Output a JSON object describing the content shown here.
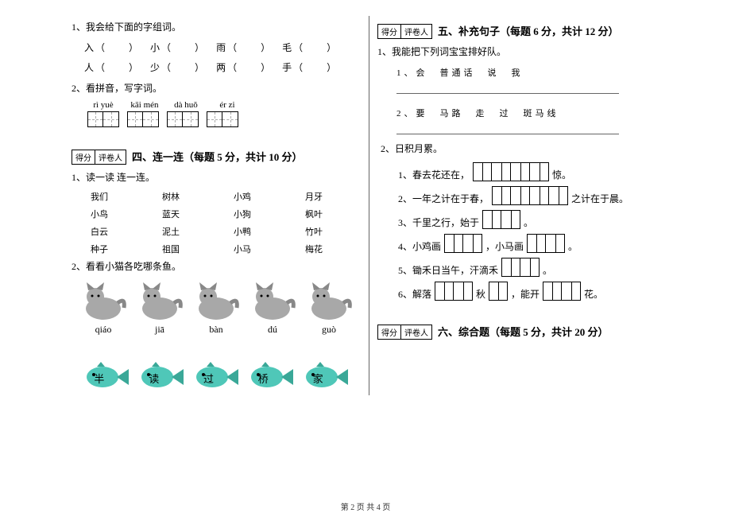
{
  "left": {
    "q1": {
      "title": "1、我会给下面的字组词。",
      "row1": [
        "入（　　）",
        "小（　　）",
        "雨（　　）",
        "毛（　　）"
      ],
      "row2": [
        "人（　　）",
        "少（　　）",
        "两（　　）",
        "手（　　）"
      ]
    },
    "q2": {
      "title": "2、看拼音，写字词。",
      "pinyin": [
        "rì yuè",
        "kāi mén",
        "dà huǒ",
        "ér zi"
      ]
    },
    "score": {
      "a": "得分",
      "b": "评卷人"
    },
    "section4": "四、连一连（每题 5 分，共计 10 分）",
    "match1_title": "1、读一读 连一连。",
    "match1": [
      [
        "我们",
        "树林",
        "小鸡",
        "月牙"
      ],
      [
        "小鸟",
        "蓝天",
        "小狗",
        "枫叶"
      ],
      [
        "白云",
        "泥土",
        "小鸭",
        "竹叶"
      ],
      [
        "种子",
        "祖国",
        "小马",
        "梅花"
      ]
    ],
    "match2_title": "2、看看小猫各吃哪条鱼。",
    "cat_pinyin": [
      "qiáo",
      "jiā",
      "bàn",
      "dú",
      "guò"
    ],
    "fish_labels": [
      "半",
      "读",
      "过",
      "桥",
      "家"
    ]
  },
  "right": {
    "score": {
      "a": "得分",
      "b": "评卷人"
    },
    "section5": "五、补充句子（每题 6 分，共计 12 分）",
    "q1": {
      "title": "1、我能把下列词宝宝排好队。",
      "line1": "1、会　普通话　说　我",
      "line2": "2、要　马路　走　过　斑马线"
    },
    "q2_title": "2、日积月累。",
    "sentences": [
      {
        "pre": "1、春去花还在，",
        "boxes": 4,
        "post": "惊。"
      },
      {
        "pre": "2、一年之计在于春，",
        "boxes": 4,
        "post": "之计在于晨。"
      },
      {
        "pre": "3、千里之行，始于",
        "boxes": 2,
        "post": "。"
      },
      {
        "pre": "4、小鸡画",
        "boxes": 2,
        "mid": "，小马画",
        "boxes2": 2,
        "post": "。"
      },
      {
        "pre": "5、锄禾日当午，汗滴禾",
        "boxes": 2,
        "post": "。"
      },
      {
        "pre": "6、解落",
        "boxes": 2,
        "mid": "秋",
        "boxes2": 1,
        "mid2": "，能开",
        "boxes3": 2,
        "post": "花。"
      }
    ],
    "section6": "六、综合题（每题 5 分，共计 20 分）"
  },
  "footer": "第 2 页 共 4 页",
  "colors": {
    "cat_body": "#a8a8a8",
    "cat_ear": "#888888",
    "fish_body": "#4fc7b8",
    "fish_fin": "#3aa898"
  }
}
